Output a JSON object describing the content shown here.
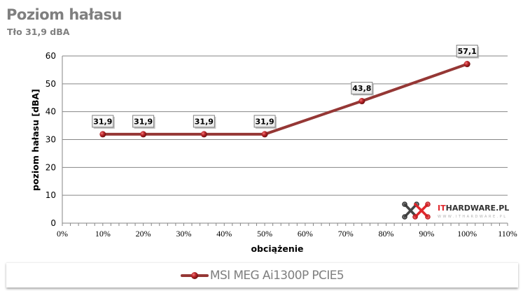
{
  "header": {
    "title": "Poziom hałasu",
    "subtitle": "Tło 31,9 dBA"
  },
  "chart_data": {
    "type": "line",
    "title": "Poziom hałasu",
    "subtitle": "Tło 31,9 dBA",
    "xlabel": "obciążenie",
    "ylabel": "poziom hałasu [dBA]",
    "xlim": [
      0,
      110
    ],
    "ylim": [
      0,
      60
    ],
    "x_ticks": [
      "0%",
      "10%",
      "20%",
      "30%",
      "40%",
      "50%",
      "60%",
      "70%",
      "80%",
      "90%",
      "100%",
      "110%"
    ],
    "y_ticks": [
      "0",
      "10",
      "20",
      "30",
      "40",
      "50",
      "60"
    ],
    "grid": "horizontal",
    "legend_position": "bottom",
    "series": [
      {
        "name": "MSI MEG Ai1300P PCIE5",
        "color": "#953735",
        "x": [
          10,
          20,
          35,
          50,
          74,
          100
        ],
        "values": [
          31.9,
          31.9,
          31.9,
          31.9,
          43.8,
          57.1
        ],
        "labels": [
          "31,9",
          "31,9",
          "31,9",
          "31,9",
          "43,8",
          "57,1"
        ]
      }
    ]
  },
  "watermark": {
    "brand_it": "IT",
    "brand_rest": "HARDWARE.PL",
    "url": "WWW.ITHARDWARE.PL"
  },
  "legend": {
    "label": "MSI MEG Ai1300P PCIE5"
  },
  "colors": {
    "series": "#953735",
    "marker": "#c0282d",
    "grid": "#868686",
    "title": "#7f7f7f",
    "logo_red": "#e0262b"
  }
}
